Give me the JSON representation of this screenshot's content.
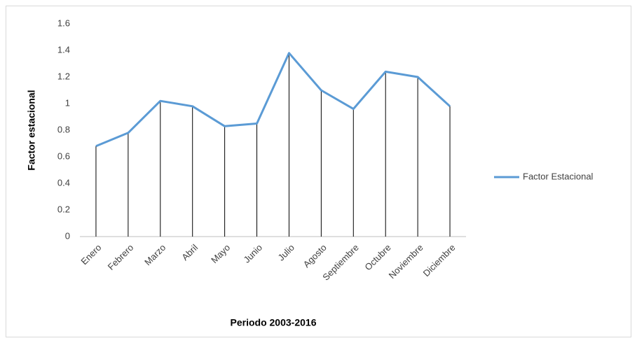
{
  "chart_data": {
    "type": "line",
    "x_label": "Periodo 2003-2016",
    "y_label": "Factor estacional",
    "categories": [
      "Enero",
      "Febrero",
      "Marzo",
      "Abril",
      "Mayo",
      "Junio",
      "Julio",
      "Agosto",
      "Septiembre",
      "Octubre",
      "Noviembre",
      "Diciembre"
    ],
    "series": [
      {
        "name": "Factor Estacional",
        "color": "#5b9bd5",
        "values": [
          0.68,
          0.78,
          1.02,
          0.98,
          0.83,
          0.85,
          1.38,
          1.1,
          0.96,
          1.24,
          1.2,
          0.98
        ]
      }
    ],
    "ylim": [
      0,
      1.6
    ],
    "yticks": [
      0,
      0.2,
      0.4,
      0.6,
      0.8,
      1,
      1.2,
      1.4,
      1.6
    ],
    "grid": false,
    "drop_lines": true,
    "legend": "right"
  }
}
